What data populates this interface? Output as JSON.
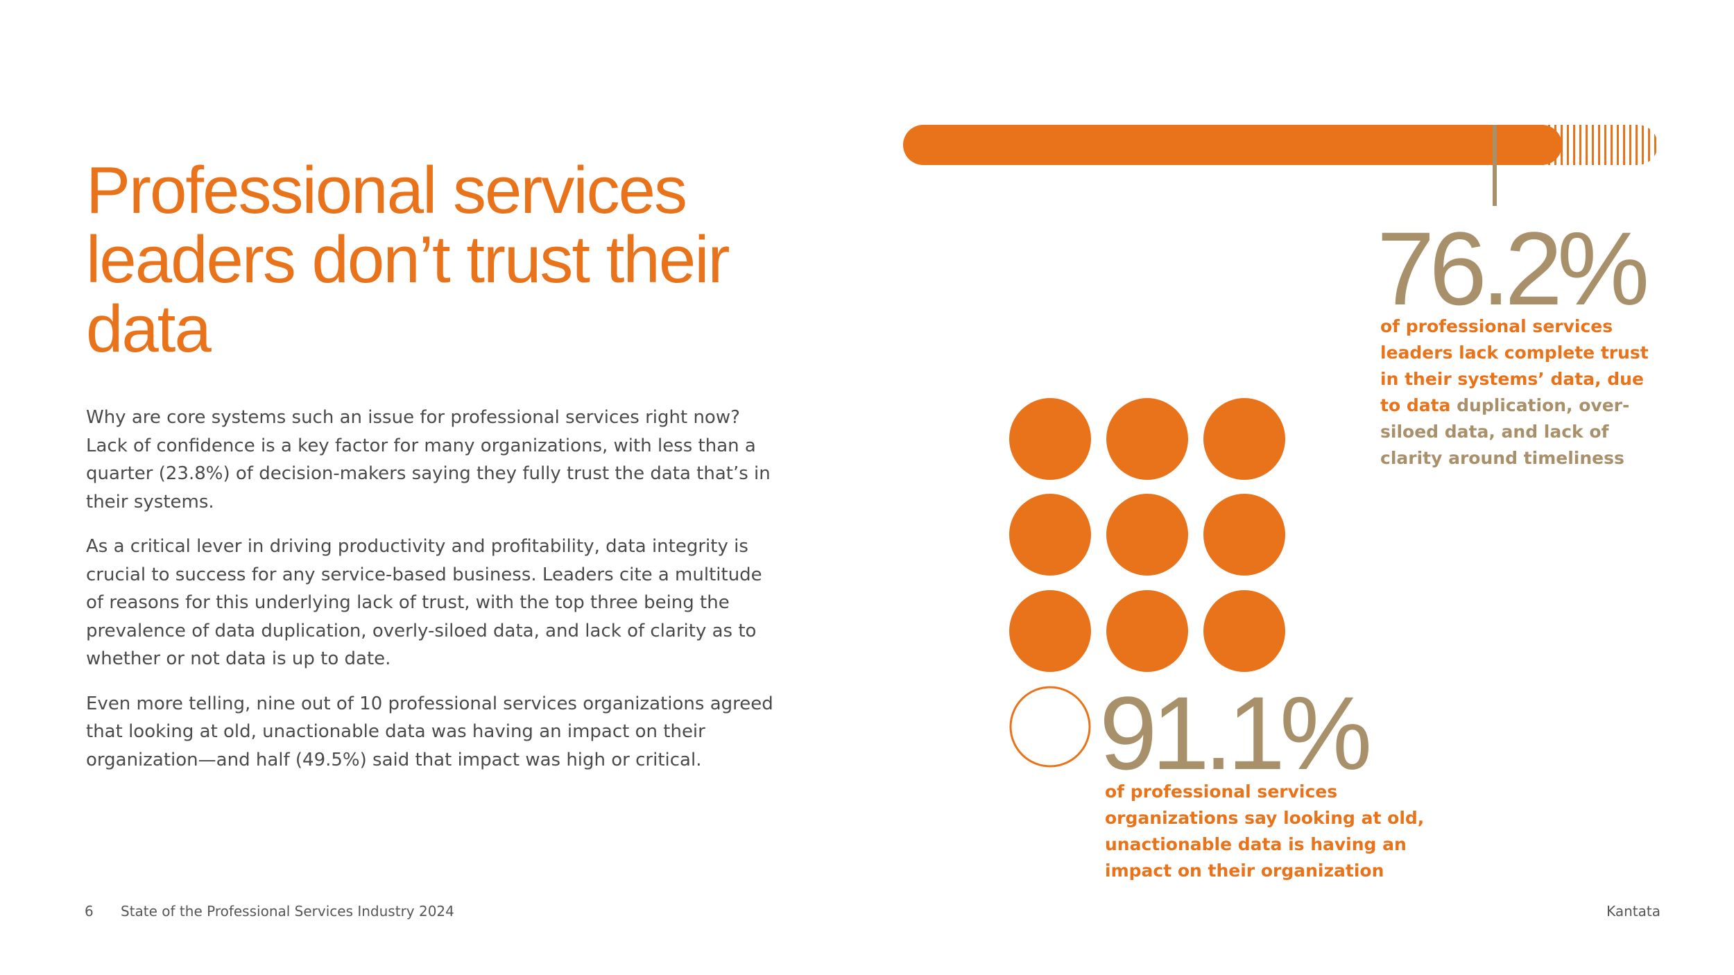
{
  "header": {
    "title": "Professional services leaders don’t trust their data"
  },
  "body": {
    "paragraphs": [
      "Why are core systems such an issue for professional services right now? Lack of confidence is a key factor for many organizations, with less than a quarter (23.8%) of decision-makers saying they fully trust the data that’s in their systems.",
      "As a critical lever in driving productivity and profitability, data integrity is crucial to success for any service-based business. Leaders cite a multitude of reasons for this underlying lack of trust, with the top three being the prevalence of data duplication, overly-siloed data, and lack of clarity as to whether or not data is up to date.",
      "Even more telling, nine out of 10 professional services organizations agreed that looking at old, unactionable data was having an impact on their organization—and half (49.5%) said that impact was high or critical."
    ]
  },
  "stats": [
    {
      "figure": "76.2%",
      "highlight": "of professional services leaders lack complete trust in their systems’ data, due to data",
      "detail": "duplication, over-siloed data, and lack of clarity around timeliness"
    },
    {
      "figure": "91.1%",
      "highlight": "of professional services organizations say looking at old, unactionable data is having an impact on their organization"
    }
  ],
  "footer": {
    "page": "6",
    "publication": "State of the Professional Services Industry 2024",
    "brand": "Kantata"
  }
}
